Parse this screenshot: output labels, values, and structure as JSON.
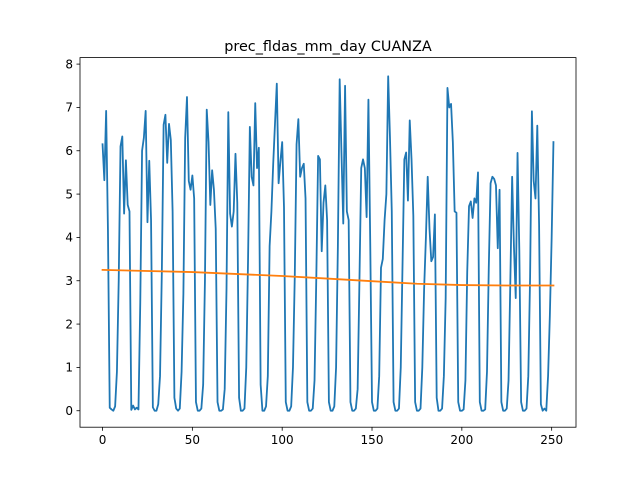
{
  "chart_data": {
    "type": "line",
    "title": "prec_fldas_mm_day CUANZA",
    "xlabel": "",
    "ylabel": "",
    "xlim": [
      -12.55,
      263.55
    ],
    "ylim": [
      -0.38,
      8.15
    ],
    "x_ticks": [
      0,
      50,
      100,
      150,
      200,
      250
    ],
    "y_ticks": [
      0,
      1,
      2,
      3,
      4,
      5,
      6,
      7,
      8
    ],
    "grid": false,
    "series": [
      {
        "color": "#1f77b4",
        "x_start": 0,
        "x_step": 1,
        "values": [
          6.15,
          5.32,
          6.92,
          4.2,
          0.07,
          0.03,
          0.0,
          0.1,
          0.9,
          3.0,
          6.1,
          6.33,
          4.55,
          5.78,
          4.75,
          4.6,
          0.02,
          0.12,
          0.03,
          0.07,
          0.03,
          2.5,
          6.0,
          6.3,
          6.92,
          4.35,
          5.77,
          4.4,
          0.08,
          0.0,
          0.0,
          0.15,
          0.8,
          3.2,
          6.6,
          6.83,
          5.72,
          6.62,
          6.25,
          4.6,
          0.3,
          0.05,
          0.0,
          0.05,
          0.9,
          2.7,
          6.3,
          7.24,
          5.3,
          5.1,
          5.43,
          4.9,
          0.2,
          0.0,
          0.0,
          0.05,
          0.6,
          3.0,
          6.95,
          6.2,
          4.75,
          5.55,
          5.1,
          4.2,
          0.2,
          0.0,
          0.0,
          0.03,
          0.5,
          2.8,
          6.89,
          4.55,
          4.25,
          4.6,
          5.93,
          4.8,
          0.3,
          0.0,
          0.0,
          0.05,
          1.0,
          3.5,
          6.55,
          5.4,
          5.2,
          7.1,
          5.6,
          6.07,
          0.6,
          0.0,
          0.0,
          0.1,
          0.8,
          3.8,
          4.6,
          5.7,
          6.63,
          7.55,
          5.25,
          5.75,
          6.2,
          4.7,
          0.2,
          0.0,
          0.0,
          0.1,
          1.0,
          3.1,
          6.15,
          6.73,
          5.4,
          5.6,
          5.7,
          4.9,
          0.2,
          0.0,
          0.0,
          0.05,
          0.7,
          3.1,
          5.88,
          5.8,
          3.68,
          4.8,
          5.2,
          4.4,
          0.2,
          0.0,
          0.0,
          0.1,
          1.0,
          3.8,
          7.65,
          5.95,
          4.32,
          7.5,
          4.6,
          4.4,
          0.2,
          0.0,
          0.0,
          0.05,
          0.5,
          3.0,
          5.6,
          5.8,
          5.6,
          4.47,
          7.18,
          3.9,
          0.2,
          0.0,
          0.0,
          0.05,
          0.8,
          3.3,
          3.5,
          4.4,
          5.0,
          7.72,
          6.3,
          4.6,
          0.2,
          0.0,
          0.0,
          0.05,
          1.0,
          3.4,
          5.8,
          5.96,
          4.85,
          6.7,
          5.8,
          4.5,
          0.2,
          0.0,
          0.0,
          0.05,
          1.0,
          2.8,
          4.0,
          5.4,
          4.2,
          3.45,
          3.55,
          4.53,
          0.3,
          0.0,
          0.0,
          0.05,
          0.8,
          2.6,
          7.45,
          7.0,
          7.08,
          6.2,
          4.6,
          4.57,
          0.2,
          0.0,
          0.0,
          0.03,
          0.7,
          3.2,
          4.72,
          4.83,
          4.45,
          4.9,
          4.8,
          5.5,
          0.2,
          0.0,
          0.0,
          0.03,
          0.9,
          3.3,
          5.25,
          5.4,
          5.35,
          5.2,
          3.75,
          5.1,
          0.2,
          0.0,
          0.0,
          0.05,
          0.7,
          3.0,
          5.4,
          3.8,
          2.6,
          5.95,
          3.7,
          0.2,
          0.0,
          0.0,
          0.05,
          0.8,
          3.1,
          6.91,
          5.3,
          4.9,
          6.58,
          4.3,
          0.15,
          0.0,
          0.05,
          0.0,
          0.8,
          2.2,
          4.0,
          6.2
        ]
      },
      {
        "color": "#ff7f0e",
        "points": [
          [
            0,
            3.25
          ],
          [
            50,
            3.2
          ],
          [
            100,
            3.11
          ],
          [
            125,
            3.05
          ],
          [
            150,
            2.99
          ],
          [
            175,
            2.93
          ],
          [
            200,
            2.9
          ],
          [
            225,
            2.89
          ],
          [
            251,
            2.89
          ]
        ]
      }
    ]
  }
}
